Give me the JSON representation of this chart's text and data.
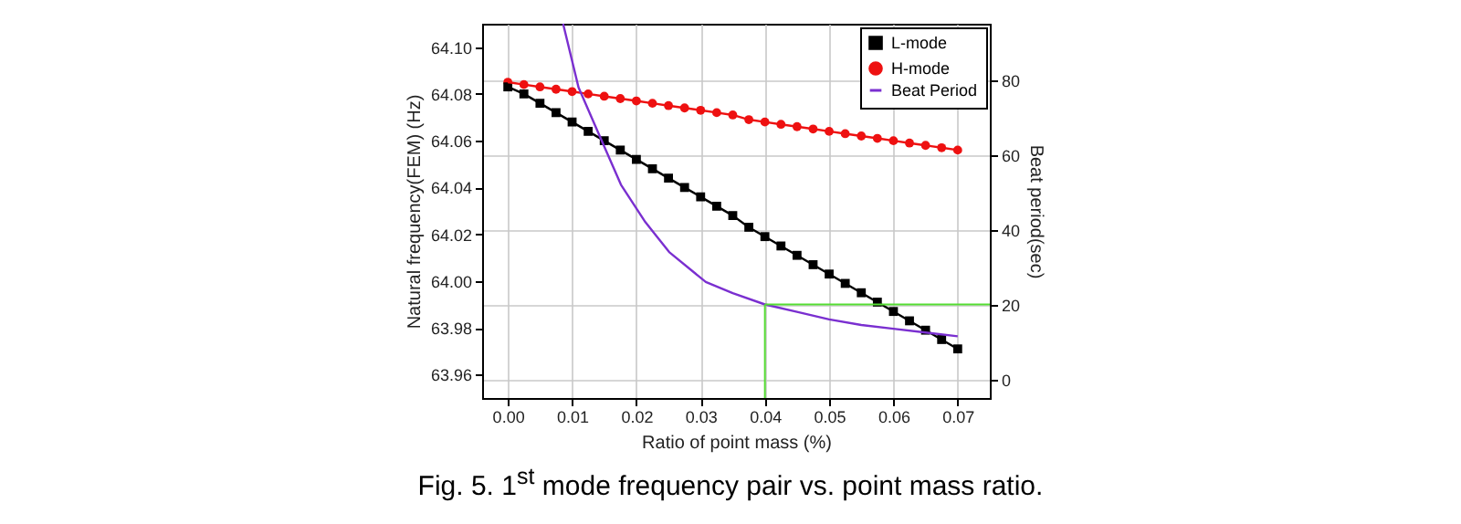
{
  "chart_data": {
    "type": "line",
    "xlabel": "Ratio of point mass (%)",
    "ylabel": "Natural frequency(FEM) (Hz)",
    "y2label": "Beat period(sec)",
    "annotations": [
      "Fig. 5. 1$^{st}$ mode frequency pair vs. point mass ratio."
    ],
    "x": [
      0,
      0.0025,
      0.005,
      0.0075,
      0.01,
      0.0125,
      0.015,
      0.0175,
      0.02,
      0.0225,
      0.025,
      0.0275,
      0.03,
      0.0325,
      0.035,
      0.0375,
      0.04,
      0.0425,
      0.045,
      0.0475,
      0.05,
      0.0525,
      0.055,
      0.0575,
      0.06,
      0.0625,
      0.065,
      0.0675,
      0.07
    ],
    "series": [
      {
        "name": "L-mode",
        "color": "#000000",
        "marker": "square",
        "values": [
          64.083,
          64.08,
          64.076,
          64.072,
          64.068,
          64.064,
          64.06,
          64.056,
          64.052,
          64.048,
          64.044,
          64.04,
          64.036,
          64.032,
          64.028,
          64.023,
          64.019,
          64.015,
          64.011,
          64.007,
          64.003,
          63.999,
          63.995,
          63.991,
          63.987,
          63.983,
          63.979,
          63.975,
          63.971
        ]
      },
      {
        "name": "H-mode",
        "color": "#ee1111",
        "marker": "circle",
        "values": [
          64.085,
          64.084,
          64.083,
          64.082,
          64.081,
          64.08,
          64.079,
          64.078,
          64.077,
          64.076,
          64.075,
          64.074,
          64.073,
          64.072,
          64.071,
          64.069,
          64.068,
          64.067,
          64.066,
          64.065,
          64.064,
          64.063,
          64.062,
          64.061,
          64.06,
          64.059,
          64.058,
          64.057,
          64.056
        ]
      },
      {
        "name": "Beat Period",
        "color": "#7a2fd0",
        "marker": "none",
        "axis": "y2",
        "x": [
          0.0086,
          0.011,
          0.0148,
          0.0176,
          0.0214,
          0.0251,
          0.0308,
          0.035,
          0.04,
          0.045,
          0.05,
          0.055,
          0.06,
          0.065,
          0.07
        ],
        "values": [
          95,
          78,
          63,
          52,
          42,
          34,
          26,
          23,
          20,
          18,
          16,
          14.5,
          13.5,
          12.5,
          11.5
        ]
      }
    ],
    "xlim": [
      -0.004,
      0.075
    ],
    "xticks": [
      {
        "value": 0,
        "label": "0.00"
      },
      {
        "value": 0.01,
        "label": "0.01"
      },
      {
        "value": 0.02,
        "label": "0.02"
      },
      {
        "value": 0.03,
        "label": "0.03"
      },
      {
        "value": 0.04,
        "label": "0.04"
      },
      {
        "value": 0.05,
        "label": "0.05"
      },
      {
        "value": 0.06,
        "label": "0.06"
      },
      {
        "value": 0.07,
        "label": "0.07"
      }
    ],
    "ylim": [
      63.95,
      64.11
    ],
    "yticks": [
      {
        "value": 63.96,
        "label": "63.96"
      },
      {
        "value": 63.98,
        "label": "63.98"
      },
      {
        "value": 64,
        "label": "64.00"
      },
      {
        "value": 64.02,
        "label": "64.02"
      },
      {
        "value": 64.04,
        "label": "64.04"
      },
      {
        "value": 64.06,
        "label": "64.06"
      },
      {
        "value": 64.08,
        "label": "64.08"
      },
      {
        "value": 64.1,
        "label": "64.10"
      }
    ],
    "y2lim": [
      -5,
      95
    ],
    "y2ticks": [
      0,
      20,
      40,
      60,
      80
    ],
    "ref_lines": [
      {
        "axis": "x",
        "value": 0.04,
        "color": "#55dd33"
      },
      {
        "axis": "y2",
        "value": 20,
        "color": "#55dd33"
      }
    ],
    "grid": true,
    "legend": "top right"
  }
}
